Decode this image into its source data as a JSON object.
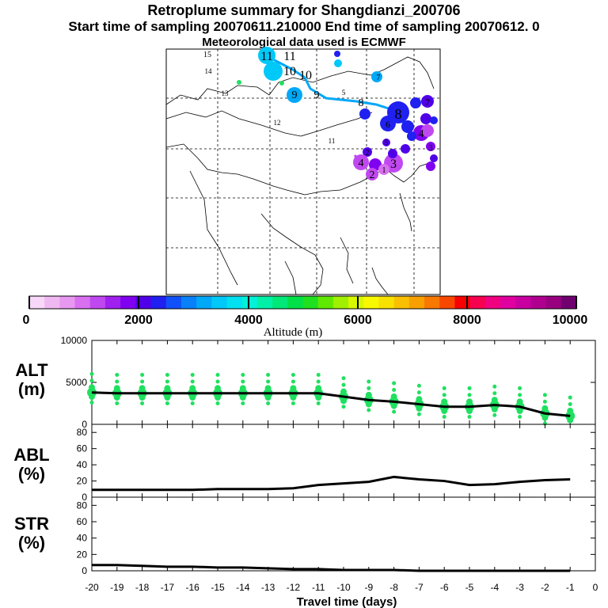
{
  "header": {
    "title": "Retroplume summary for Shangdianzi_200706",
    "sampling_line": "Start time of sampling 20070611.210000     End time of sampling 20070612.     0",
    "met_line": "Meteorological data used is ECMWF"
  },
  "colorbar": {
    "ticks": [
      "0",
      "2000",
      "4000",
      "6000",
      "8000",
      "10000"
    ],
    "label": "Altitude (m)",
    "colors": [
      "#f8d8f8",
      "#f0b8f0",
      "#e898f0",
      "#d870f0",
      "#c048f0",
      "#a020f0",
      "#8000f0",
      "#5000e8",
      "#2020f0",
      "#1050f8",
      "#0880f8",
      "#00a8f8",
      "#00c8f8",
      "#00e0f0",
      "#00f0d8",
      "#00f0a8",
      "#00e878",
      "#00e048",
      "#20e020",
      "#60e800",
      "#a0f000",
      "#d8f800",
      "#f8f800",
      "#f8e000",
      "#f8c000",
      "#f8a000",
      "#f87800",
      "#f84800",
      "#f80000",
      "#f80050",
      "#f00080",
      "#e000a0",
      "#c800a0",
      "#b00090",
      "#980080",
      "#700070"
    ]
  },
  "map": {
    "trajectory_labels": [
      "15",
      "11",
      "11",
      "10",
      "10",
      "9",
      "9",
      "8",
      "8",
      "7",
      "7",
      "6",
      "5",
      "5",
      "4",
      "4",
      "3",
      "3",
      "2",
      "2",
      "1",
      "14",
      "13",
      "12",
      "11"
    ],
    "colors": {
      "trajectory": "#00a8f8",
      "high": "#2020f0",
      "mid": "#8000f0",
      "low": "#c048f0"
    }
  },
  "chart_data": [
    {
      "type": "line",
      "title": "ALT (m)",
      "ylabel": "ALT\n(m)",
      "x": [
        -20,
        -19,
        -18,
        -17,
        -16,
        -15,
        -14,
        -13,
        -12,
        -11,
        -10,
        -9,
        -8,
        -7,
        -6,
        -5,
        -4,
        -3,
        -2,
        -1
      ],
      "values": [
        3800,
        3700,
        3700,
        3700,
        3700,
        3700,
        3700,
        3700,
        3700,
        3700,
        3300,
        2900,
        2700,
        2400,
        2100,
        2100,
        2300,
        2100,
        1300,
        1000
      ],
      "ylim": [
        0,
        10000
      ],
      "yticks": [
        "0",
        "5000",
        "10000"
      ],
      "scatter_color": "#20e060"
    },
    {
      "type": "line",
      "title": "ABL (%)",
      "ylabel": "ABL\n(%)",
      "x": [
        -20,
        -19,
        -18,
        -17,
        -16,
        -15,
        -14,
        -13,
        -12,
        -11,
        -10,
        -9,
        -8,
        -7,
        -6,
        -5,
        -4,
        -3,
        -2,
        -1
      ],
      "values": [
        9,
        9,
        9,
        9,
        9,
        10,
        10,
        10,
        11,
        15,
        17,
        19,
        25,
        22,
        20,
        15,
        16,
        19,
        21,
        22
      ],
      "ylim": [
        0,
        90
      ],
      "yticks": [
        "0",
        "20",
        "40",
        "60",
        "80"
      ]
    },
    {
      "type": "line",
      "title": "STR (%)",
      "ylabel": "STR\n(%)",
      "x": [
        -20,
        -19,
        -18,
        -17,
        -16,
        -15,
        -14,
        -13,
        -12,
        -11,
        -10,
        -9,
        -8,
        -7,
        -6,
        -5,
        -4,
        -3,
        -2,
        -1
      ],
      "values": [
        7,
        7,
        6,
        5,
        5,
        4,
        4,
        3,
        2,
        2,
        1,
        1,
        1,
        0,
        0,
        0,
        0,
        0,
        0,
        0
      ],
      "ylim": [
        0,
        90
      ],
      "yticks": [
        "0",
        "20",
        "40",
        "60",
        "80"
      ]
    }
  ],
  "xaxis": {
    "label": "Travel time (days)",
    "ticks": [
      "-20",
      "-19",
      "-18",
      "-17",
      "-16",
      "-15",
      "-14",
      "-13",
      "-12",
      "-11",
      "-10",
      "-9",
      "-8",
      "-7",
      "-6",
      "-5",
      "-4",
      "-3",
      "-2",
      "-1",
      "0"
    ]
  }
}
